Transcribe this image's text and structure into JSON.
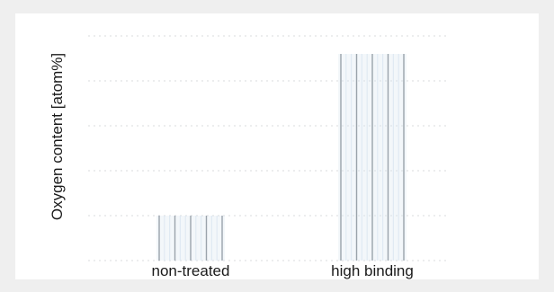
{
  "chart_data": {
    "type": "bar",
    "title": "",
    "xlabel": "",
    "ylabel": "Oxygen content [atom%]",
    "categories": [
      "non-treated",
      "high binding"
    ],
    "values": [
      1.0,
      4.6
    ],
    "ylim": [
      0,
      5
    ],
    "grid": true,
    "colors": {
      "bar_line": "#9aa3ab",
      "bar_light": "#dce8f2",
      "grid": "#c9ccd0",
      "text": "#1a1a1a",
      "background": "#efefef",
      "panel": "#ffffff"
    }
  }
}
